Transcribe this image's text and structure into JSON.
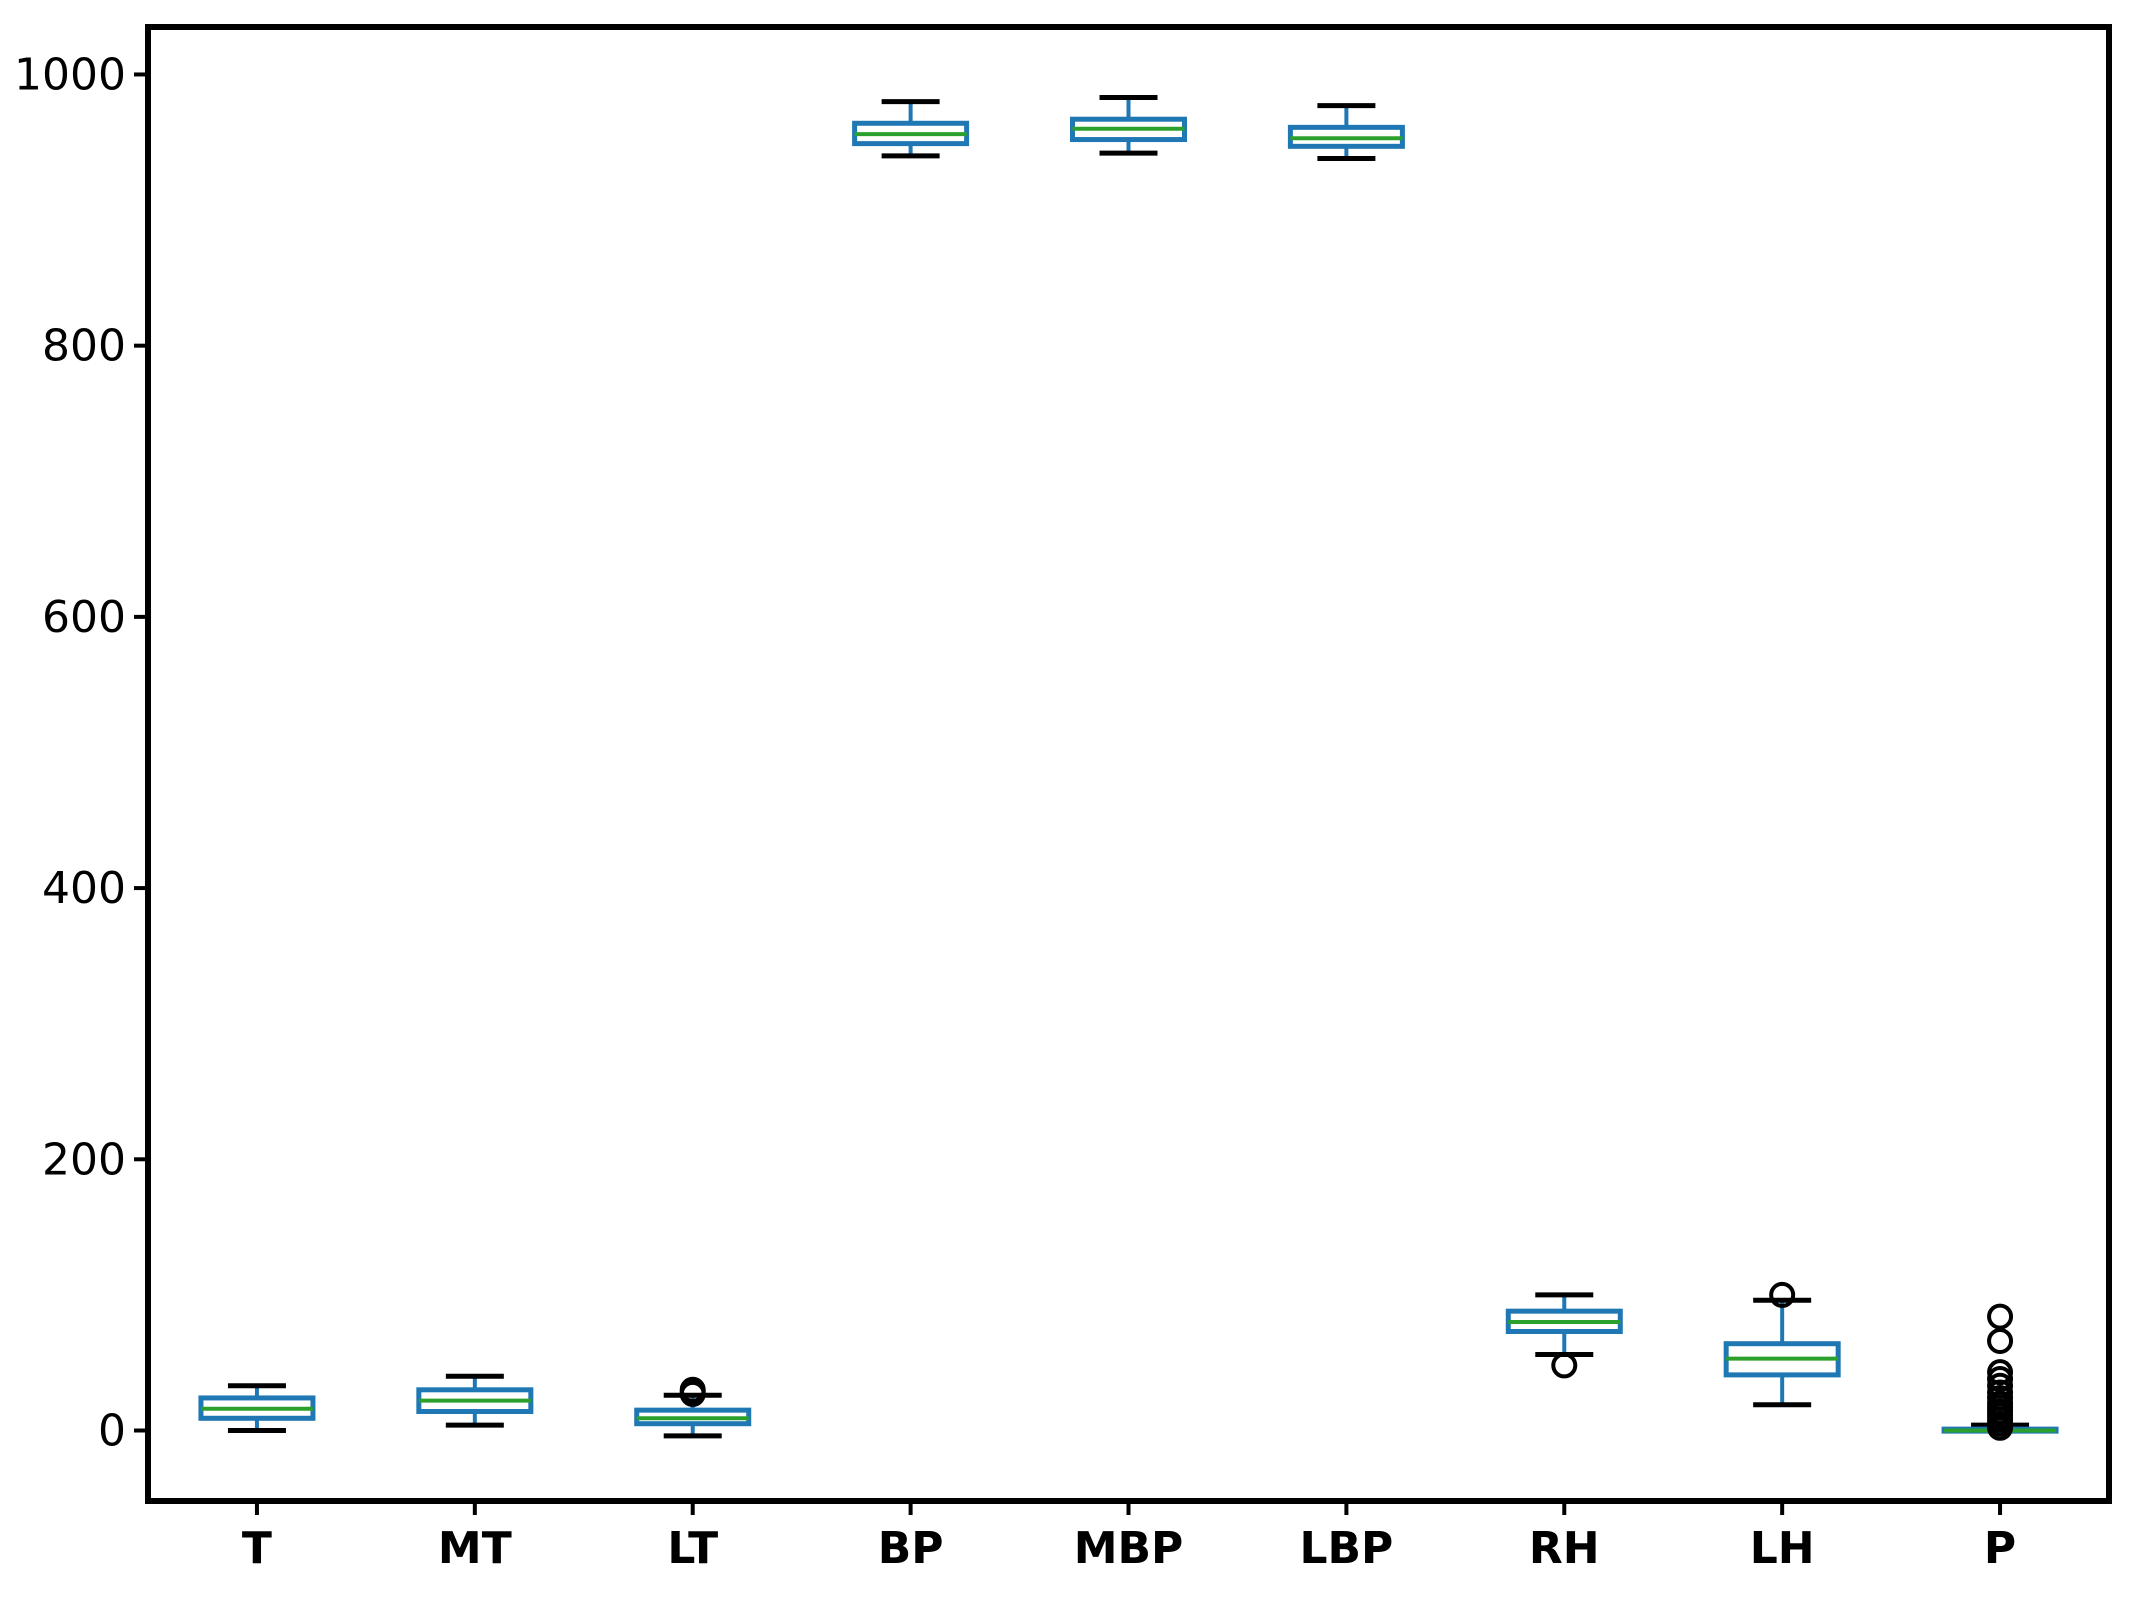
{
  "chart_data": {
    "type": "box",
    "title": "",
    "xlabel": "",
    "ylabel": "",
    "ylim": [
      -52,
      1035
    ],
    "yticks": [
      0,
      200,
      400,
      600,
      800,
      1000
    ],
    "grid": false,
    "legend": "none",
    "colors": {
      "box": "#1f77b4",
      "median": "#2ca02c",
      "whisker": "#1f77b4",
      "cap": "#000000",
      "flier": "#000000",
      "frame": "#000000"
    },
    "categories": [
      "T",
      "MT",
      "LT",
      "BP",
      "MBP",
      "LBP",
      "RH",
      "LH",
      "P"
    ],
    "boxes": [
      {
        "label": "T",
        "whislo": 0,
        "q1": 9,
        "med": 16,
        "q3": 24,
        "whishi": 33,
        "fliers": []
      },
      {
        "label": "MT",
        "whislo": 4,
        "q1": 14,
        "med": 22,
        "q3": 30,
        "whishi": 40,
        "fliers": []
      },
      {
        "label": "LT",
        "whislo": -4,
        "q1": 5,
        "med": 9,
        "q3": 15,
        "whishi": 26,
        "fliers": [
          27,
          28,
          30
        ]
      },
      {
        "label": "BP",
        "whislo": 940,
        "q1": 949,
        "med": 956,
        "q3": 964,
        "whishi": 980,
        "fliers": []
      },
      {
        "label": "MBP",
        "whislo": 942,
        "q1": 952,
        "med": 960,
        "q3": 967,
        "whishi": 983,
        "fliers": []
      },
      {
        "label": "LBP",
        "whislo": 938,
        "q1": 947,
        "med": 953,
        "q3": 961,
        "whishi": 977,
        "fliers": []
      },
      {
        "label": "RH",
        "whislo": 56,
        "q1": 73,
        "med": 80,
        "q3": 88,
        "whishi": 100,
        "fliers": [
          48
        ]
      },
      {
        "label": "LH",
        "whislo": 19,
        "q1": 41,
        "med": 53,
        "q3": 64,
        "whishi": 96,
        "fliers": [
          100
        ]
      },
      {
        "label": "P",
        "whislo": 0,
        "q1": 0,
        "med": 0,
        "q3": 1,
        "whishi": 4,
        "fliers": [
          2,
          5,
          8,
          11,
          14,
          17,
          20,
          24,
          28,
          33,
          38,
          43,
          66,
          84
        ]
      }
    ]
  }
}
